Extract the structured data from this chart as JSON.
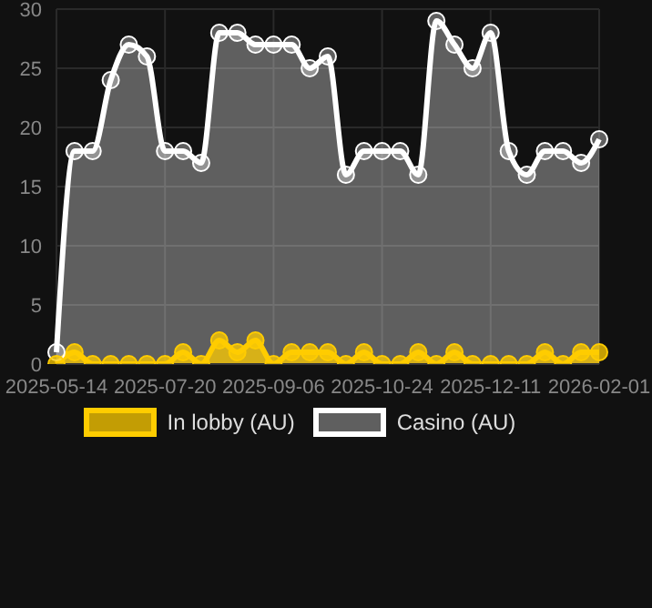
{
  "chart_data": {
    "type": "area",
    "categories": [
      "2025-05-14",
      null,
      null,
      null,
      null,
      null,
      "2025-07-20",
      null,
      null,
      null,
      null,
      null,
      "2025-09-06",
      null,
      null,
      null,
      null,
      null,
      "2025-10-24",
      null,
      null,
      null,
      null,
      null,
      "2025-12-11",
      null,
      null,
      null,
      null,
      null,
      "2026-02-01"
    ],
    "series": [
      {
        "name": "In lobby (AU)",
        "color": "#ffcc00",
        "values": [
          0,
          1,
          0,
          0,
          0,
          0,
          0,
          1,
          0,
          2,
          1,
          2,
          0,
          1,
          1,
          1,
          0,
          1,
          0,
          0,
          1,
          0,
          1,
          0,
          0,
          0,
          0,
          1,
          0,
          1,
          1
        ]
      },
      {
        "name": "Casino (AU)",
        "color": "#ffffff",
        "values": [
          1,
          18,
          18,
          24,
          27,
          26,
          18,
          18,
          17,
          28,
          28,
          27,
          27,
          27,
          25,
          26,
          16,
          18,
          18,
          18,
          16,
          29,
          27,
          25,
          28,
          18,
          16,
          18,
          18,
          17,
          19
        ]
      }
    ],
    "ylim": [
      0,
      30
    ],
    "yticks": [
      0,
      5,
      10,
      15,
      20,
      25,
      30
    ],
    "grid": true,
    "legend": "bottom",
    "marker": "circle"
  }
}
